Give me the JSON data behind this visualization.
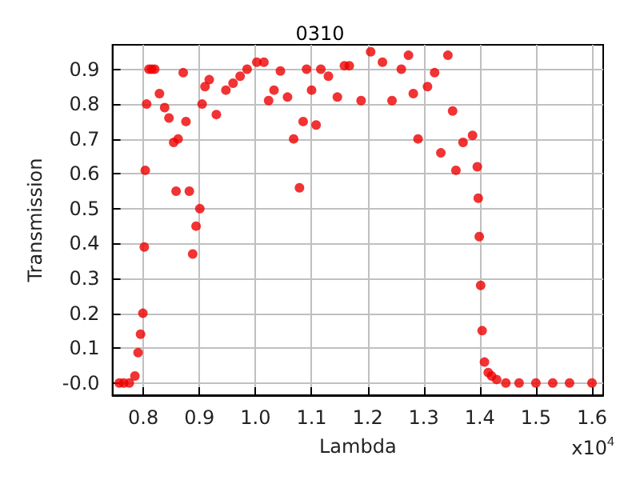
{
  "chart_data": {
    "type": "scatter",
    "title": "0310",
    "xlabel": "Lambda",
    "ylabel": "Transmission",
    "annotations": [
      "x10$^{4}$"
    ],
    "x": [
      0.757,
      0.765,
      0.775,
      0.785,
      0.7906,
      0.795,
      0.7992,
      0.8017,
      0.8034,
      0.8059,
      0.81,
      0.815,
      0.8203,
      0.8287,
      0.838,
      0.8457,
      0.8541,
      0.8584,
      0.862,
      0.8711,
      0.876,
      0.882,
      0.888,
      0.894,
      0.9007,
      0.9048,
      0.91,
      0.9175,
      0.9302,
      0.9472,
      0.96,
      0.9726,
      0.985,
      1.0023,
      1.015,
      1.0234,
      1.033,
      1.0444,
      1.0571,
      1.068,
      1.0784,
      1.085,
      1.0911,
      1.1,
      1.1081,
      1.1165,
      1.13,
      1.146,
      1.1586,
      1.1672,
      1.1883,
      1.2053,
      1.2264,
      1.2434,
      1.26,
      1.2728,
      1.2814,
      1.2898,
      1.3067,
      1.3194,
      1.3305,
      1.3431,
      1.3515,
      1.3574,
      1.3701,
      1.387,
      1.3955,
      1.3972,
      1.399,
      1.4015,
      1.4041,
      1.4083,
      1.415,
      1.421,
      1.43,
      1.4464,
      1.47,
      1.5,
      1.53,
      1.56,
      1.6
    ],
    "series": [
      {
        "color": "#ee0000",
        "values": [
          0.0,
          0.0,
          0.0,
          0.02,
          0.087,
          0.14,
          0.2,
          0.39,
          0.61,
          0.8,
          0.9,
          0.9,
          0.9,
          0.83,
          0.79,
          0.76,
          0.69,
          0.55,
          0.7,
          0.89,
          0.75,
          0.55,
          0.37,
          0.45,
          0.5,
          0.8,
          0.85,
          0.87,
          0.77,
          0.84,
          0.86,
          0.88,
          0.9,
          0.92,
          0.92,
          0.81,
          0.84,
          0.895,
          0.82,
          0.7,
          0.56,
          0.75,
          0.9,
          0.84,
          0.74,
          0.9,
          0.88,
          0.82,
          0.91,
          0.91,
          0.81,
          0.95,
          0.92,
          0.81,
          0.9,
          0.94,
          0.83,
          0.7,
          0.85,
          0.89,
          0.66,
          0.94,
          0.78,
          0.61,
          0.69,
          0.71,
          0.62,
          0.53,
          0.42,
          0.28,
          0.15,
          0.06,
          0.03,
          0.02,
          0.01,
          0.0,
          0.0,
          0.0,
          0.0,
          0.0,
          0.0
        ]
      }
    ],
    "xlim": [
      0.745,
      1.62
    ],
    "xticks": [
      0.8,
      0.9,
      {
        "value": 1,
        "label": "1.0"
      },
      1.1,
      1.2,
      1.3,
      1.4,
      1.5,
      1.6
    ],
    "ylim": [
      -0.035,
      0.97
    ],
    "yticks": [
      {
        "value": 0,
        "label": "-0.0"
      },
      0.1,
      0.2,
      0.3,
      0.4,
      0.5,
      0.6,
      0.7,
      0.8,
      0.9
    ],
    "grid": true,
    "marker": "circle"
  }
}
